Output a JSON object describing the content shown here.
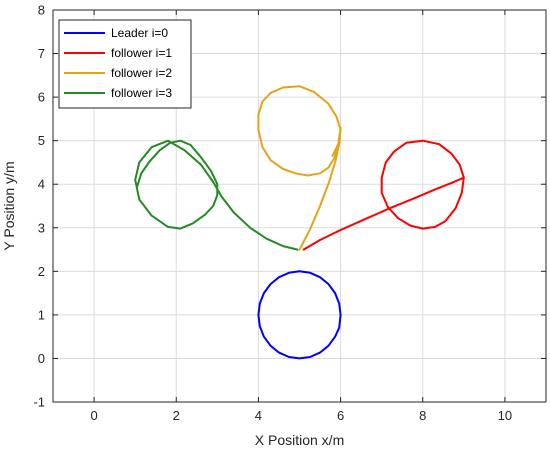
{
  "chart_data": {
    "type": "line",
    "xlabel": "X Position x/m",
    "ylabel": "Y Position y/m",
    "xlim": [
      -1,
      11
    ],
    "ylim": [
      -1,
      8
    ],
    "x_ticks": [
      0,
      2,
      4,
      6,
      8,
      10
    ],
    "y_ticks": [
      -1,
      0,
      1,
      2,
      3,
      4,
      5,
      6,
      7,
      8
    ],
    "grid": true,
    "legend_position": "top-left",
    "series": [
      {
        "name": "Leader i=0",
        "color": "#0000ff",
        "x": [
          6.0,
          5.966,
          5.866,
          5.707,
          5.5,
          5.259,
          5.0,
          4.741,
          4.5,
          4.293,
          4.134,
          4.034,
          4.0,
          4.034,
          4.134,
          4.293,
          4.5,
          4.741,
          5.0,
          5.259,
          5.5,
          5.707,
          5.866,
          5.966,
          6.0
        ],
        "y": [
          1.0,
          1.259,
          1.5,
          1.707,
          1.866,
          1.966,
          2.0,
          1.966,
          1.866,
          1.707,
          1.5,
          1.259,
          1.0,
          0.741,
          0.5,
          0.293,
          0.134,
          0.034,
          0.0,
          0.034,
          0.134,
          0.293,
          0.5,
          0.707,
          1.0
        ]
      },
      {
        "name": "follower i=1",
        "color": "#ff0000",
        "x": [
          5.1,
          5.5,
          6.0,
          6.6,
          7.2,
          7.8,
          8.3,
          8.7,
          9.0,
          8.95,
          8.8,
          8.55,
          8.3,
          8.0,
          7.7,
          7.4,
          7.15,
          7.0,
          7.0,
          7.1,
          7.3,
          7.6,
          8.0,
          8.4,
          8.7,
          8.9,
          9.0
        ],
        "y": [
          2.5,
          2.72,
          2.95,
          3.2,
          3.45,
          3.68,
          3.88,
          4.03,
          4.15,
          3.8,
          3.45,
          3.15,
          3.02,
          2.98,
          3.05,
          3.22,
          3.48,
          3.8,
          4.15,
          4.5,
          4.75,
          4.95,
          5.0,
          4.92,
          4.7,
          4.45,
          4.15
        ]
      },
      {
        "name": "follower i=2",
        "color": "#e6a317",
        "x": [
          5.0,
          5.25,
          5.5,
          5.72,
          5.88,
          5.97,
          6.0,
          5.95,
          5.85,
          5.7,
          5.5,
          5.2,
          4.9,
          4.6,
          4.3,
          4.1,
          4.0,
          4.0,
          4.1,
          4.3,
          4.6,
          5.0,
          5.35,
          5.7,
          5.9,
          6.0,
          5.96,
          5.8
        ],
        "y": [
          2.5,
          2.95,
          3.5,
          4.05,
          4.55,
          4.95,
          5.3,
          4.95,
          4.6,
          4.38,
          4.25,
          4.2,
          4.25,
          4.35,
          4.55,
          4.85,
          5.25,
          5.6,
          5.9,
          6.1,
          6.22,
          6.25,
          6.12,
          5.85,
          5.55,
          5.25,
          4.95,
          4.65
        ]
      },
      {
        "name": "follower i=3",
        "color": "#228b22",
        "x": [
          4.95,
          4.6,
          4.2,
          3.8,
          3.4,
          3.1,
          2.9,
          2.6,
          2.2,
          1.8,
          1.4,
          1.1,
          1.0,
          1.1,
          1.4,
          1.8,
          2.1,
          2.4,
          2.7,
          2.9,
          3.0,
          3.0,
          2.85,
          2.6,
          2.35,
          2.1,
          1.85,
          1.6,
          1.35,
          1.15,
          1.05
        ],
        "y": [
          2.5,
          2.58,
          2.75,
          3.0,
          3.35,
          3.72,
          4.05,
          4.45,
          4.78,
          5.0,
          4.85,
          4.5,
          4.1,
          3.65,
          3.28,
          3.02,
          2.98,
          3.1,
          3.3,
          3.5,
          3.75,
          4.0,
          4.3,
          4.62,
          4.9,
          5.0,
          4.95,
          4.78,
          4.52,
          4.25,
          3.95
        ]
      }
    ]
  }
}
